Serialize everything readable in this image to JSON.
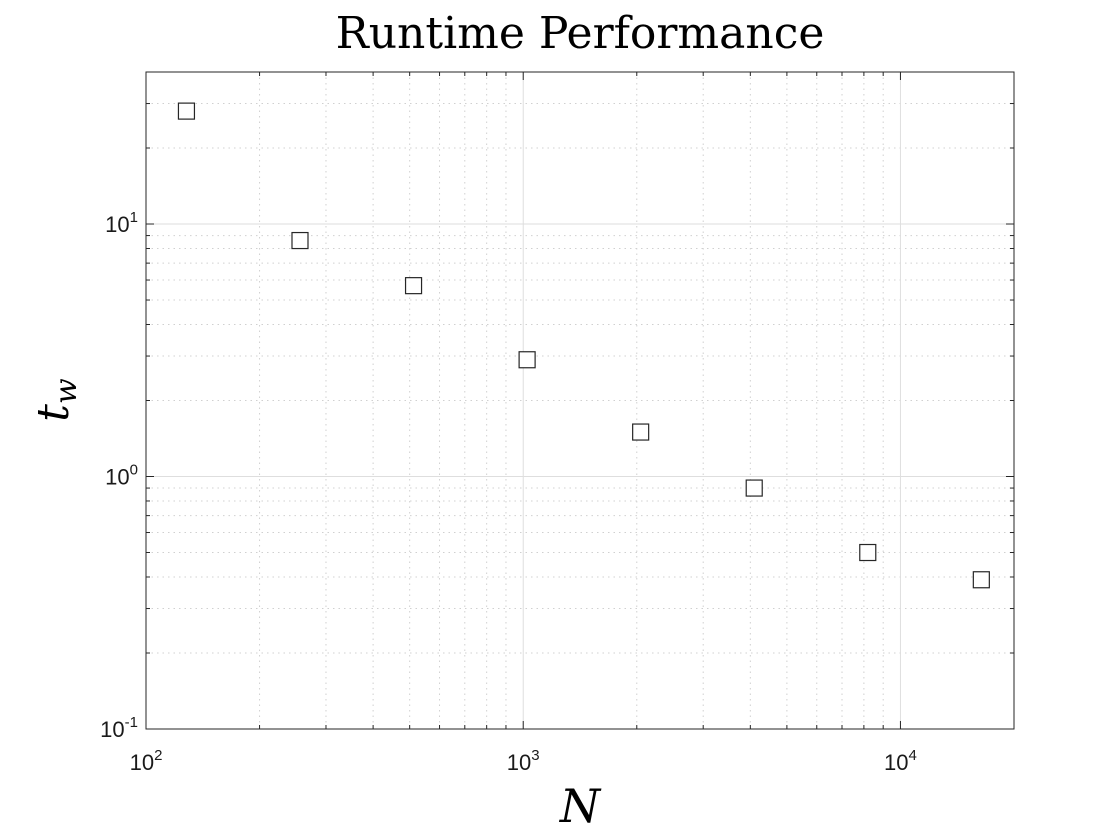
{
  "chart_data": {
    "type": "scatter",
    "title": "Runtime Performance",
    "xlabel": "N",
    "ylabel_base": "t",
    "ylabel_sub": "w",
    "xscale": "log",
    "yscale": "log",
    "xlim": [
      100,
      20000
    ],
    "ylim": [
      0.1,
      40
    ],
    "grid": true,
    "minor_grid": true,
    "marker": "square",
    "series": [
      {
        "x": [
          128,
          256,
          512,
          1024,
          2048,
          4096,
          8192,
          16384
        ],
        "y": [
          28,
          8.6,
          5.7,
          2.9,
          1.5,
          0.9,
          0.5,
          0.39
        ]
      }
    ],
    "x_ticks": [
      {
        "value": 100,
        "base": "10",
        "exp": "2"
      },
      {
        "value": 1000,
        "base": "10",
        "exp": "3"
      },
      {
        "value": 10000,
        "base": "10",
        "exp": "4"
      }
    ],
    "y_ticks": [
      {
        "value": 0.1,
        "base": "10",
        "exp": "-1"
      },
      {
        "value": 1,
        "base": "10",
        "exp": "0"
      },
      {
        "value": 10,
        "base": "10",
        "exp": "1"
      }
    ]
  }
}
